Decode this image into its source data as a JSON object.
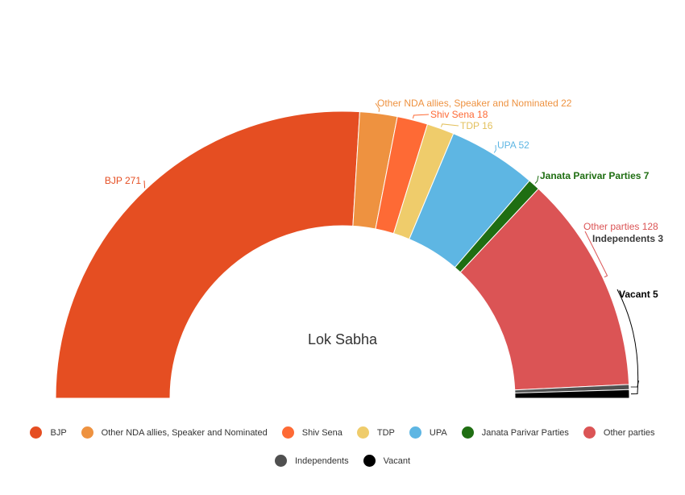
{
  "chart_data": {
    "type": "pie",
    "subtype": "semicircle-donut",
    "center_label": "Lok Sabha",
    "slices": [
      {
        "name": "BJP",
        "value": 271,
        "color": "#e54e22",
        "label": "BJP 271"
      },
      {
        "name": "Other NDA allies, Speaker and Nominated",
        "value": 22,
        "color": "#ee9240",
        "label": "Other NDA allies, Speaker and Nominated 22"
      },
      {
        "name": "Shiv Sena",
        "value": 18,
        "color": "#fe6a35",
        "label": "Shiv Sena 18"
      },
      {
        "name": "TDP",
        "value": 16,
        "color": "#efcc6b",
        "label": "TDP 16"
      },
      {
        "name": "UPA",
        "value": 52,
        "color": "#5eb6e3",
        "label": "UPA 52"
      },
      {
        "name": "Janata Parivar Parties",
        "value": 7,
        "color": "#1f6e12",
        "label": "Janata Parivar Parties 7"
      },
      {
        "name": "Other parties",
        "value": 128,
        "color": "#db5455",
        "label": "Other parties 128"
      },
      {
        "name": "Independents",
        "value": 3,
        "color": "#505050",
        "label": "Independents 3"
      },
      {
        "name": "Vacant",
        "value": 5,
        "color": "#000000",
        "label": "Vacant 5"
      }
    ],
    "legend_position": "bottom"
  },
  "legend": {
    "row1": [
      {
        "label": "BJP",
        "color": "#e54e22"
      },
      {
        "label": "Other NDA allies, Speaker and Nominated",
        "color": "#ee9240"
      },
      {
        "label": "Shiv Sena",
        "color": "#fe6a35"
      },
      {
        "label": "TDP",
        "color": "#efcc6b"
      },
      {
        "label": "UPA",
        "color": "#5eb6e3"
      },
      {
        "label": "Janata Parivar Parties",
        "color": "#1f6e12"
      },
      {
        "label": "Other parties",
        "color": "#db5455"
      }
    ],
    "row2": [
      {
        "label": "Independents",
        "color": "#505050"
      },
      {
        "label": "Vacant",
        "color": "#000000"
      }
    ]
  }
}
